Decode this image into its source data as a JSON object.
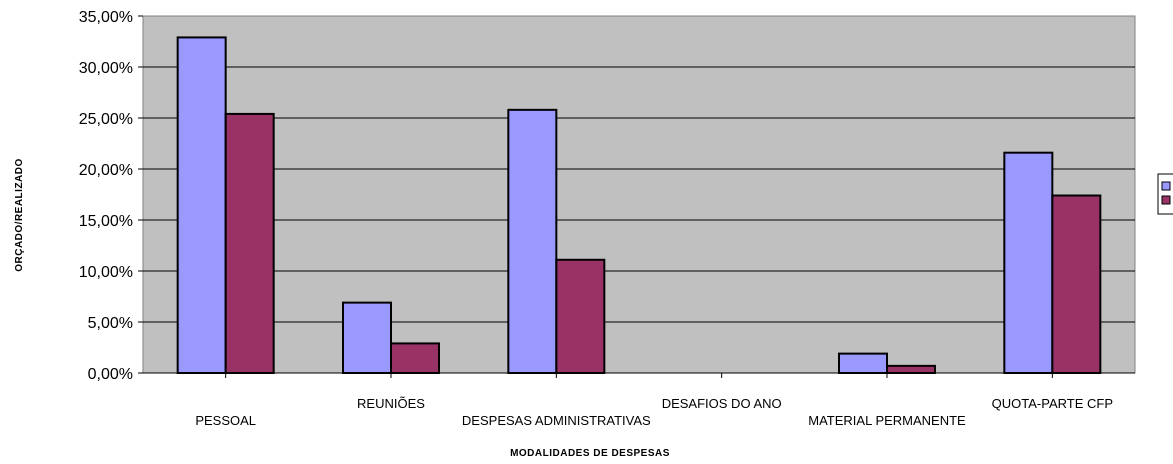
{
  "chart_data": {
    "type": "bar",
    "title": "",
    "xlabel": "MODALIDADES DE DESPESAS",
    "ylabel": "ORÇADO/REALIZADO",
    "ylim": [
      0,
      35
    ],
    "yticks": [
      "0,00%",
      "5,00%",
      "10,00%",
      "15,00%",
      "20,00%",
      "25,00%",
      "30,00%",
      "35,00%"
    ],
    "grid": true,
    "legend": "right",
    "categories": [
      "PESSOAL",
      "REUNIÕES",
      "DESPESAS ADMINISTRATIVAS",
      "DESAFIOS DO ANO",
      "MATERIAL PERMANENTE",
      "QUOTA-PARTE CFP"
    ],
    "series": [
      {
        "color": "#9999ff",
        "values": [
          32.9,
          6.9,
          25.8,
          0,
          1.9,
          21.6
        ]
      },
      {
        "color": "#993366",
        "values": [
          25.4,
          2.9,
          11.1,
          0,
          0.7,
          17.4
        ]
      }
    ],
    "plot_background": "#c0c0c0"
  }
}
